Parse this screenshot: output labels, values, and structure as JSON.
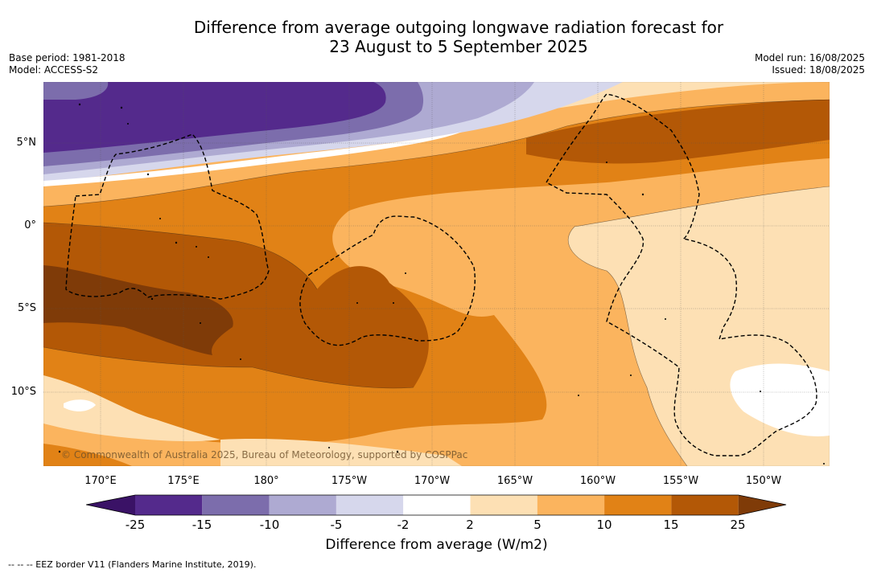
{
  "title_line1": "Difference from average outgoing longwave radiation forecast for",
  "title_line2": "23 August to 5 September 2025",
  "meta_left": {
    "base_period": "Base period: 1981-2018",
    "model": "Model: ACCESS-S2"
  },
  "meta_right": {
    "model_run": "Model run: 16/08/2025",
    "issued": "Issued: 18/08/2025"
  },
  "lat_labels": [
    "5°N",
    "0°",
    "5°S",
    "10°S"
  ],
  "lon_labels": [
    "170°E",
    "175°E",
    "180°",
    "175°W",
    "170°W",
    "165°W",
    "160°W",
    "155°W",
    "150°W"
  ],
  "copyright": "© Commonwealth of Australia 2025, Bureau of Meteorology, supported by COSPPac",
  "colorbar": {
    "labels": [
      "-25",
      "-15",
      "-10",
      "-5",
      "-2",
      "2",
      "5",
      "10",
      "15",
      "25"
    ],
    "colors": [
      "#3a1266",
      "#542a8c",
      "#7c6dac",
      "#aeaad2",
      "#d6d7ec",
      "#ffffff",
      "#fde0b4",
      "#fbb45e",
      "#e18216",
      "#b35806",
      "#7f3b08"
    ],
    "title": "Difference from average (W/m2)"
  },
  "footer": "--  --  -- EEZ border V11 (Flanders Marine Institute, 2019)."
}
